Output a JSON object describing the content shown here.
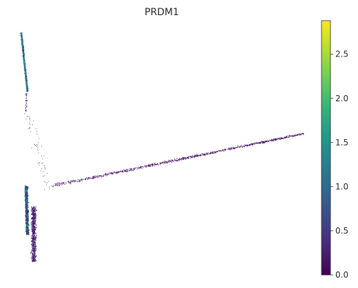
{
  "chart_data": {
    "type": "scatter",
    "title": "PRDM1",
    "xlabel": "",
    "ylabel": "",
    "axes_visible": false,
    "grid": false,
    "colormap": "viridis",
    "colorbar": {
      "orientation": "vertical",
      "placement": "right",
      "range": [
        0.0,
        2.88
      ],
      "ticks": [
        0.0,
        0.5,
        1.0,
        1.5,
        2.0,
        2.5
      ],
      "tick_labels": [
        "0.0",
        "0.5",
        "1.0",
        "1.5",
        "2.0",
        "2.5"
      ],
      "colors": [
        "#440154",
        "#482878",
        "#3e4989",
        "#31688e",
        "#26828e",
        "#1f9e89",
        "#35b779",
        "#6ece58",
        "#b5de2b",
        "#fde725"
      ]
    },
    "point_color_default": "#440154",
    "structure": [
      {
        "name": "upper-left branch",
        "shape": "thin diagonal streak"
      },
      {
        "name": "lower-left cluster",
        "shape": "dense vertical cluster"
      },
      {
        "name": "long diagonal branch",
        "shape": "long thin line rising to the right"
      },
      {
        "name": "connecting points",
        "shape": "sparse scattered points"
      }
    ]
  }
}
